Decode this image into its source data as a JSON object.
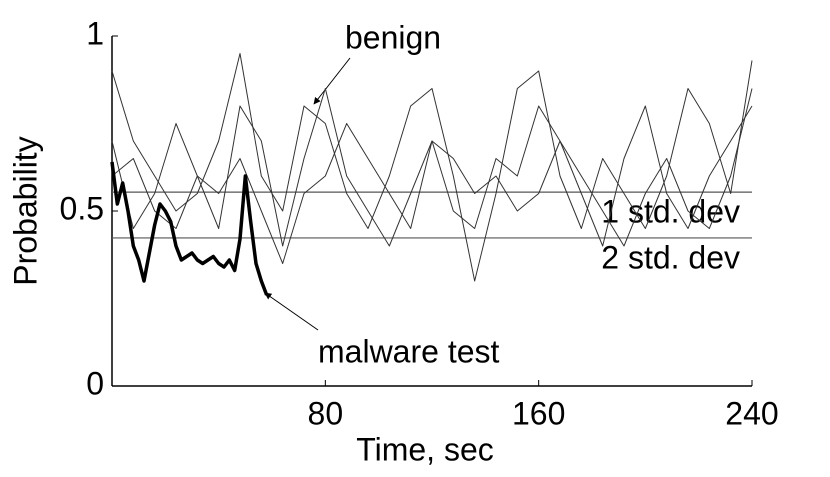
{
  "chart_data": {
    "type": "line",
    "xlabel": "Time, sec",
    "ylabel": "Probability",
    "xlim": [
      0,
      240
    ],
    "ylim": [
      0,
      1
    ],
    "xticks": [
      80,
      160,
      240
    ],
    "yticks": [
      0,
      0.5,
      1
    ],
    "series": [
      {
        "color": "#333333",
        "x": [
          0,
          8,
          16,
          24,
          32,
          40,
          48,
          56,
          64,
          72,
          80,
          88,
          96,
          104,
          112,
          120,
          128,
          136,
          144,
          152,
          160,
          168,
          176,
          184,
          192,
          200,
          208,
          216,
          224,
          232,
          240
        ],
        "values": [
          0.9,
          0.7,
          0.6,
          0.5,
          0.55,
          0.7,
          0.95,
          0.6,
          0.5,
          0.8,
          0.75,
          0.55,
          0.45,
          0.6,
          0.8,
          0.85,
          0.6,
          0.3,
          0.55,
          0.85,
          0.9,
          0.6,
          0.45,
          0.65,
          0.55,
          0.45,
          0.6,
          0.85,
          0.75,
          0.55,
          0.93
        ]
      },
      {
        "color": "#333333",
        "x": [
          0,
          8,
          16,
          24,
          32,
          40,
          48,
          56,
          64,
          72,
          80,
          88,
          96,
          104,
          112,
          120,
          128,
          136,
          144,
          152,
          160,
          168,
          176,
          184,
          192,
          200,
          208,
          216,
          224,
          232,
          240
        ],
        "values": [
          0.7,
          0.45,
          0.55,
          0.75,
          0.6,
          0.45,
          0.8,
          0.7,
          0.4,
          0.65,
          0.85,
          0.6,
          0.5,
          0.4,
          0.55,
          0.7,
          0.5,
          0.45,
          0.65,
          0.6,
          0.8,
          0.7,
          0.55,
          0.4,
          0.65,
          0.8,
          0.55,
          0.45,
          0.6,
          0.7,
          0.8
        ]
      },
      {
        "color": "#333333",
        "x": [
          0,
          8,
          16,
          24,
          32,
          40,
          48,
          56,
          64,
          72,
          80,
          88,
          96,
          104,
          112,
          120,
          128,
          136,
          144,
          152,
          160,
          168,
          176,
          184,
          192,
          200,
          208,
          216,
          224,
          232,
          240
        ],
        "values": [
          0.6,
          0.65,
          0.5,
          0.45,
          0.6,
          0.55,
          0.65,
          0.5,
          0.35,
          0.55,
          0.6,
          0.75,
          0.65,
          0.55,
          0.45,
          0.7,
          0.65,
          0.55,
          0.6,
          0.5,
          0.55,
          0.7,
          0.6,
          0.5,
          0.4,
          0.55,
          0.65,
          0.5,
          0.45,
          0.6,
          0.85
        ]
      },
      {
        "color": "#000000",
        "x": [
          0,
          2,
          4,
          6,
          8,
          10,
          12,
          14,
          16,
          18,
          20,
          22,
          24,
          26,
          28,
          30,
          32,
          34,
          36,
          38,
          40,
          42,
          44,
          46,
          48,
          50,
          52,
          54,
          56,
          58
        ],
        "values": [
          0.64,
          0.52,
          0.58,
          0.5,
          0.4,
          0.36,
          0.3,
          0.38,
          0.46,
          0.52,
          0.5,
          0.47,
          0.4,
          0.36,
          0.37,
          0.38,
          0.36,
          0.35,
          0.36,
          0.37,
          0.35,
          0.34,
          0.36,
          0.33,
          0.42,
          0.6,
          0.47,
          0.35,
          0.3,
          0.26
        ]
      }
    ],
    "hlines": [
      {
        "value": 0.554,
        "label": "1 std. dev"
      },
      {
        "value": 0.423,
        "label": "2 std. dev"
      }
    ],
    "annotations": [
      "benign",
      "malware test"
    ]
  }
}
